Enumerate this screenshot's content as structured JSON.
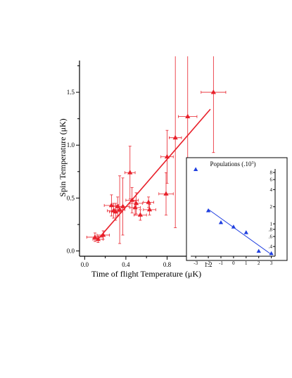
{
  "chart_data": [
    {
      "type": "scatter",
      "xlabel": "Time of flight Temperature (μK)",
      "ylabel": "Spin Temperature (μK)",
      "xlim": [
        -0.05,
        1.35
      ],
      "ylim": [
        -0.05,
        1.8
      ],
      "xticks": [
        0.0,
        0.4,
        0.8,
        1.2
      ],
      "xtick_labels": [
        "0.0",
        "0.4",
        "0.8",
        "1.2"
      ],
      "yticks": [
        0.0,
        0.5,
        1.0,
        1.5
      ],
      "ytick_labels": [
        "0.0",
        "0.5",
        "1.0",
        "1.5"
      ],
      "grid": false,
      "series": [
        {
          "color": "#e8202a",
          "marker": "triangle",
          "points": [
            {
              "x": 0.1,
              "y": 0.13,
              "xerr": 0.08,
              "yerr": 0.04
            },
            {
              "x": 0.13,
              "y": 0.11,
              "xerr": 0.05,
              "yerr": 0.03
            },
            {
              "x": 0.18,
              "y": 0.15,
              "xerr": 0.06,
              "yerr": 0.04
            },
            {
              "x": 0.26,
              "y": 0.43,
              "xerr": 0.07,
              "yerr": 0.1
            },
            {
              "x": 0.28,
              "y": 0.38,
              "xerr": 0.06,
              "yerr": 0.07
            },
            {
              "x": 0.3,
              "y": 0.37,
              "xerr": 0.06,
              "yerr": 0.08
            },
            {
              "x": 0.32,
              "y": 0.42,
              "xerr": 0.06,
              "yerr": 0.09
            },
            {
              "x": 0.34,
              "y": 0.39,
              "xerr": 0.05,
              "yerr": 0.32
            },
            {
              "x": 0.37,
              "y": 0.42,
              "xerr": 0.06,
              "yerr": 0.27
            },
            {
              "x": 0.44,
              "y": 0.74,
              "xerr": 0.05,
              "yerr": 0.25
            },
            {
              "x": 0.46,
              "y": 0.48,
              "xerr": 0.06,
              "yerr": 0.12
            },
            {
              "x": 0.49,
              "y": 0.41,
              "xerr": 0.05,
              "yerr": 0.07
            },
            {
              "x": 0.5,
              "y": 0.45,
              "xerr": 0.06,
              "yerr": 0.1
            },
            {
              "x": 0.54,
              "y": 0.34,
              "xerr": 0.06,
              "yerr": 0.05
            },
            {
              "x": 0.62,
              "y": 0.46,
              "xerr": 0.05,
              "yerr": 0.05
            },
            {
              "x": 0.63,
              "y": 0.39,
              "xerr": 0.06,
              "yerr": 0.05
            },
            {
              "x": 0.79,
              "y": 0.54,
              "xerr": 0.07,
              "yerr": 0.2
            },
            {
              "x": 0.8,
              "y": 0.89,
              "xerr": 0.06,
              "yerr": 0.25
            },
            {
              "x": 0.88,
              "y": 1.07,
              "xerr": 0.06,
              "yerr": 0.85
            },
            {
              "x": 1.0,
              "y": 1.27,
              "xerr": 0.09,
              "yerr": 0.85
            },
            {
              "x": 1.25,
              "y": 1.5,
              "xerr": 0.12,
              "yerr": 0.57
            }
          ]
        }
      ],
      "fit_line": {
        "color": "#e8202a",
        "from": {
          "x": 0.12,
          "y": 0.1
        },
        "to": {
          "x": 1.22,
          "y": 1.34
        }
      }
    },
    {
      "type": "scatter",
      "title": "Populations (.10",
      "title_sup": "3",
      "title_close": ")",
      "xlim": [
        -3.4,
        3.3
      ],
      "ylim_log": [
        0.27,
        13
      ],
      "y_scale": "log",
      "xticks": [
        -3,
        -2,
        -1,
        0,
        1,
        2,
        3
      ],
      "xtick_labels": [
        "-3",
        "-2",
        "-1",
        "0",
        "1",
        "2",
        "3"
      ],
      "yticks": [
        0.4,
        0.6,
        0.8,
        1,
        2,
        4,
        6,
        8
      ],
      "ytick_labels": [
        ".4",
        ".6",
        ".8",
        "1",
        "2",
        "4",
        "6",
        "8"
      ],
      "series": [
        {
          "color": "#1f3fe0",
          "marker": "triangle",
          "points": [
            {
              "x": -3,
              "y": 9.0
            },
            {
              "x": -2,
              "y": 1.7
            },
            {
              "x": -1,
              "y": 1.05
            },
            {
              "x": 0,
              "y": 0.88
            },
            {
              "x": 1,
              "y": 0.7
            },
            {
              "x": 2,
              "y": 0.33
            },
            {
              "x": 3,
              "y": 0.3
            }
          ]
        }
      ],
      "fit_line": {
        "color": "#1f3fe0",
        "from": {
          "x": -2,
          "y": 1.8
        },
        "to": {
          "x": 3,
          "y": 0.29
        }
      }
    }
  ]
}
